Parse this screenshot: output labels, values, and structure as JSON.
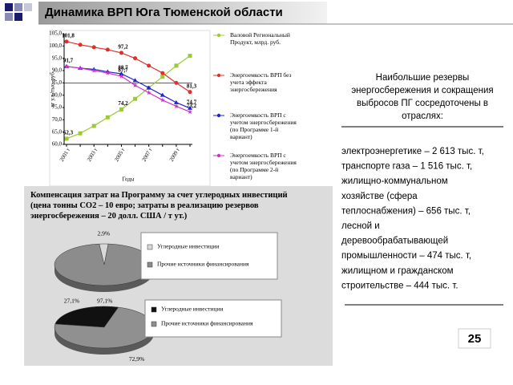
{
  "header": {
    "title": "Динамика ВРП Юга Тюменской области"
  },
  "chart_data": [
    {
      "type": "line",
      "y_label": "кг у.т./тыс. руб.",
      "x_label": "Годы",
      "categories": [
        "2001 г",
        null,
        "2003 г",
        null,
        "2005 г",
        null,
        "2007 г",
        null,
        "2009 г",
        null
      ],
      "ylim": [
        60,
        105
      ],
      "yticks": [
        {
          "value": 60,
          "label": "60,0"
        },
        {
          "value": 65,
          "label": "65,0"
        },
        {
          "value": 70,
          "label": "70,0"
        },
        {
          "value": 75,
          "label": "75,0"
        },
        {
          "value": 80,
          "label": "80,0"
        },
        {
          "value": 85,
          "label": "85,0"
        },
        {
          "value": 90,
          "label": "90,0"
        },
        {
          "value": 95,
          "label": "95,0"
        },
        {
          "value": 100,
          "label": "100,0"
        },
        {
          "value": 105,
          "label": "105,0"
        }
      ],
      "series": [
        {
          "name": "Валовой Региональный Продукт, млрд. руб.",
          "color": "#99cc33",
          "marker": "square",
          "values": [
            62.3,
            64.5,
            67.5,
            71,
            74.2,
            78.5,
            83,
            87.5,
            92,
            96
          ],
          "value_labels": [
            "62,3",
            null,
            null,
            null,
            "74,2",
            null,
            null,
            null,
            null,
            null
          ]
        },
        {
          "name": "Энергоемкость ВРП без учета эффекта энергосбережения",
          "color": "#e0302a",
          "marker": "circle",
          "values": [
            101.8,
            100.5,
            99.5,
            98.5,
            97.2,
            95,
            92,
            89,
            85,
            81.3
          ],
          "value_labels": [
            "101,8",
            null,
            null,
            null,
            "97,2",
            null,
            null,
            null,
            null,
            "81,3"
          ]
        },
        {
          "name": "Энергоемкость ВРП с учетом энергосбережения (по Программе 1-й вариант)",
          "color": "#2222cc",
          "marker": "triangle",
          "values": [
            91.7,
            91,
            90.5,
            89.5,
            88.7,
            86,
            83,
            80,
            77,
            74.7
          ],
          "value_labels": [
            "91,7",
            null,
            null,
            null,
            "88,7",
            null,
            null,
            null,
            null,
            "74,7"
          ]
        },
        {
          "name": "Энергоемкость ВРП с учетом энергосбережения (по Программе 2-й вариант)",
          "color": "#cc33cc",
          "marker": "star",
          "values": [
            91.7,
            91,
            90,
            89,
            87.7,
            84,
            81,
            78,
            75.5,
            73.2
          ],
          "value_labels": [
            null,
            null,
            null,
            null,
            "87,7",
            null,
            null,
            null,
            null,
            "73,2"
          ]
        }
      ]
    },
    {
      "type": "pie",
      "title": "Компенсация затрат на Программу за счет углеродных инвестиций (цена тонны СО2 – 10 евро; затраты в реализацию резервов энергосбережения – 20 долл. США / т ут.)",
      "categories": [
        "Углеродные инвестиции",
        "Прочие источники финансирования"
      ],
      "values": [
        2.9,
        97.1
      ],
      "value_labels": [
        "2,9%",
        "97,1%"
      ],
      "colors": [
        "#d9d9d9",
        "#8c8c8c"
      ]
    },
    {
      "type": "pie",
      "categories": [
        "Углеродные инвестиции",
        "Прочие источники финансирования"
      ],
      "values": [
        27.1,
        72.9
      ],
      "value_labels": [
        "27,1%",
        "72,9%"
      ],
      "colors": [
        "#111111",
        "#909090"
      ]
    }
  ],
  "panel": {
    "heading": [
      "Наибольшие резервы",
      "энергосбережения и сокращения",
      "выбросов ПГ сосредоточены в",
      "отраслях:"
    ],
    "lines": [
      "электроэнергетике – 2 613 тыс. т,",
      "транспорте газа – 1 516 тыс. т,",
      "жилищно-коммунальном",
      "хозяйстве (сфера",
      "теплоснабжения) – 656 тыс. т,",
      "лесной и",
      "деревообрабатывающей",
      "промышленности – 474 тыс. т,",
      "жилищном и гражданском",
      "строительстве – 444 тыс. т."
    ]
  },
  "page_number": "25"
}
